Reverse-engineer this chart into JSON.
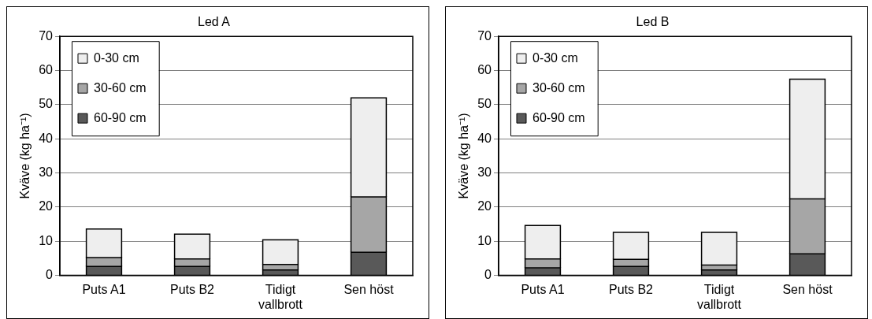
{
  "chart_data": [
    {
      "type": "bar",
      "title": "Led A",
      "ylabel": "Kväve (kg ha⁻¹)",
      "categories": [
        "Puts A1",
        "Puts B2",
        "Tidigt vallbrott",
        "Sen höst"
      ],
      "stacked": true,
      "ylim": [
        0,
        70
      ],
      "yticks": [
        0,
        10,
        20,
        30,
        40,
        50,
        60,
        70
      ],
      "grid": "y",
      "legend": "top left",
      "series": [
        {
          "name": "60-90 cm",
          "color": "#595959",
          "values": [
            2.6,
            2.6,
            1.6,
            6.8
          ]
        },
        {
          "name": "30-60 cm",
          "color": "#a6a6a6",
          "values": [
            2.6,
            2.2,
            1.6,
            16.2
          ]
        },
        {
          "name": "0-30 cm",
          "color": "#eeeeee",
          "values": [
            8.4,
            7.3,
            7.2,
            29
          ]
        }
      ]
    },
    {
      "type": "bar",
      "title": "Led B",
      "ylabel": "Kväve (kg ha⁻¹)",
      "categories": [
        "Puts A1",
        "Puts B2",
        "Tidigt vallbrott",
        "Sen höst"
      ],
      "stacked": true,
      "ylim": [
        0,
        70
      ],
      "yticks": [
        0,
        10,
        20,
        30,
        40,
        50,
        60,
        70
      ],
      "grid": "y",
      "legend": "top left",
      "series": [
        {
          "name": "60-90 cm",
          "color": "#595959",
          "values": [
            2.2,
            2.6,
            1.6,
            6.3
          ]
        },
        {
          "name": "30-60 cm",
          "color": "#a6a6a6",
          "values": [
            2.6,
            2.1,
            1.4,
            16.1
          ]
        },
        {
          "name": "0-30 cm",
          "color": "#eeeeee",
          "values": [
            9.8,
            7.9,
            9.6,
            35.1
          ]
        }
      ]
    }
  ]
}
